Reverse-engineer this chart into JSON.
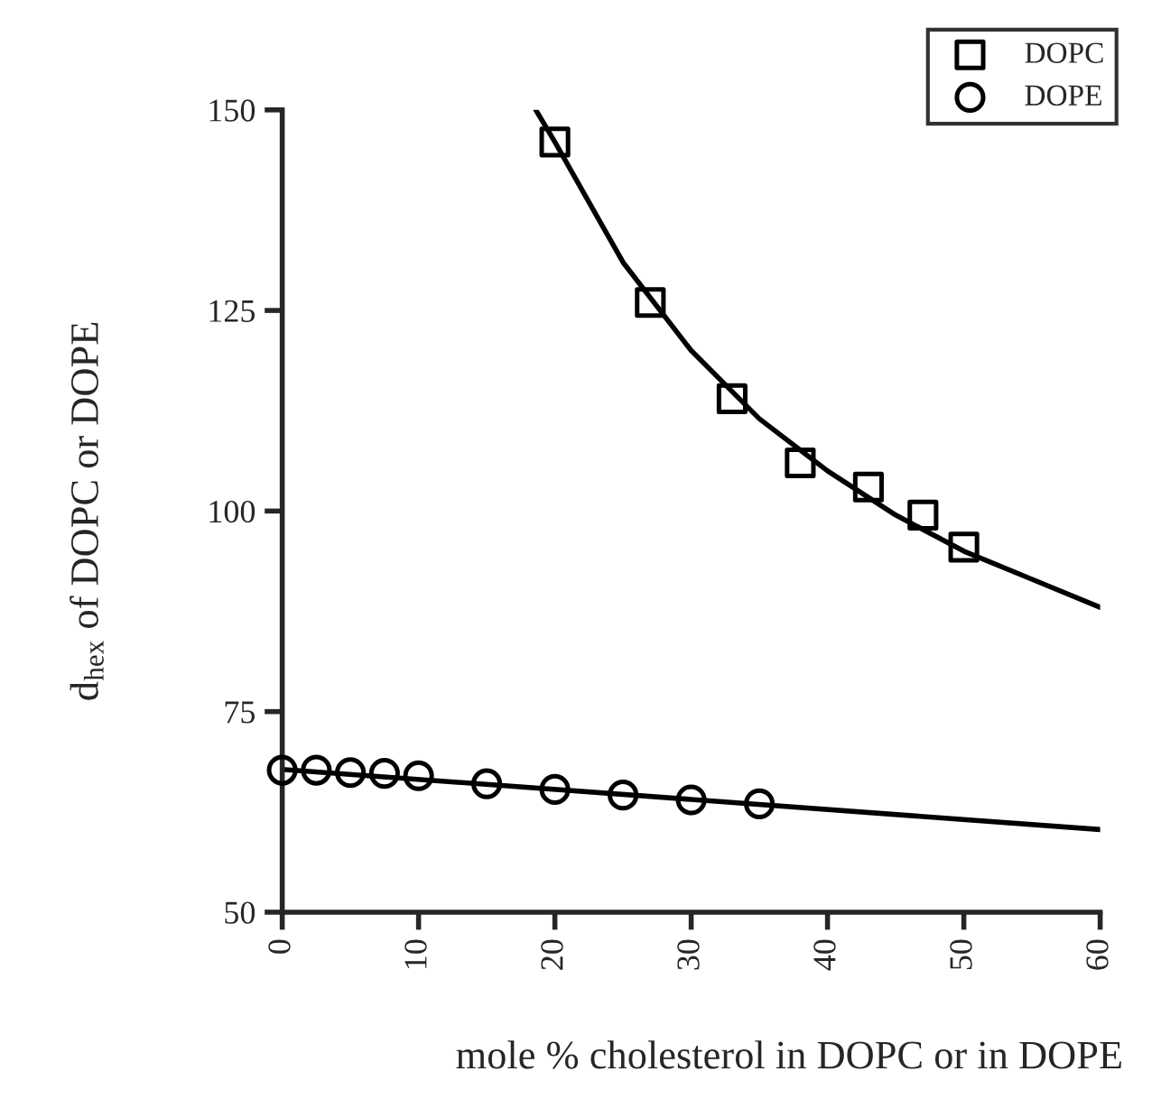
{
  "chart_data": {
    "type": "scatter",
    "xlabel": "mole % cholesterol in DOPC or in DOPE",
    "ylabel": "d$_{hex}$ of DOPC or DOPE",
    "xlim": [
      0,
      60
    ],
    "xticks": [
      0,
      10,
      20,
      30,
      40,
      50,
      60
    ],
    "ylim": [
      50,
      150
    ],
    "yticks": [
      50,
      75,
      100,
      125,
      150
    ],
    "grid": false,
    "legend": "top right",
    "series": [
      {
        "name": "DOPC",
        "marker": "square",
        "color": "#000000",
        "x": [
          20,
          27,
          33,
          38,
          43,
          47,
          50
        ],
        "values": [
          146,
          126,
          114,
          106,
          103,
          99.5,
          95.5
        ]
      },
      {
        "name": "DOPE",
        "marker": "circle",
        "color": "#000000",
        "x": [
          0,
          2.5,
          5,
          7.5,
          10,
          15,
          20,
          25,
          30,
          35
        ],
        "values": [
          67.7,
          67.7,
          67.4,
          67.3,
          67,
          66,
          65.3,
          64.6,
          64,
          63.5
        ]
      },
      {
        "type": "line",
        "marker": "none",
        "color": "#000000",
        "x": [
          18.6,
          20,
          25,
          30,
          35,
          40,
          45,
          50,
          55,
          60
        ],
        "values": [
          150,
          146,
          131,
          120,
          111.5,
          105,
          99.5,
          95,
          91.5,
          88
        ]
      },
      {
        "type": "line",
        "marker": "none",
        "color": "#000000",
        "x": [
          0,
          60
        ],
        "values": [
          67.8,
          60.3
        ]
      }
    ]
  }
}
